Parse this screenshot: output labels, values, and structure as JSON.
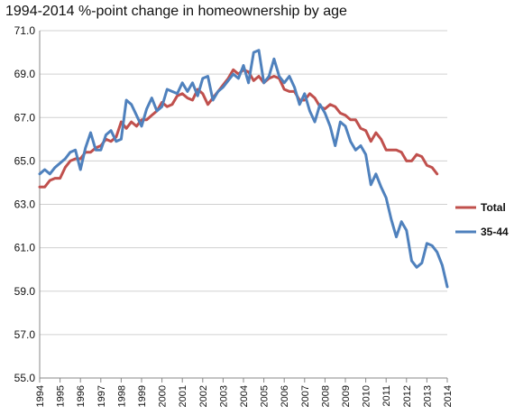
{
  "chart_data": {
    "type": "line",
    "title": "1994-2014 %-point change in homeownership by age",
    "xlabel": "",
    "ylabel": "",
    "ylim": [
      55.0,
      71.0
    ],
    "y_ticks": [
      "71.0",
      "69.0",
      "67.0",
      "65.0",
      "63.0",
      "61.0",
      "59.0",
      "57.0",
      "55.0"
    ],
    "x_ticks": [
      "1994",
      "1995",
      "1996",
      "1997",
      "1998",
      "1999",
      "2000",
      "2001",
      "2002",
      "2003",
      "2004",
      "2005",
      "2006",
      "2007",
      "2008",
      "2009",
      "2010",
      "2011",
      "2012",
      "2013",
      "2014"
    ],
    "x_start": 1994,
    "quarters_per_tick": 4,
    "grid": "horizontal",
    "legend_position": "right",
    "series": [
      {
        "name": "Total",
        "color": "#c0504d",
        "values": [
          63.8,
          63.8,
          64.1,
          64.2,
          64.2,
          64.7,
          65.0,
          65.1,
          65.1,
          65.4,
          65.4,
          65.6,
          65.7,
          66.0,
          65.9,
          66.1,
          66.8,
          66.5,
          66.8,
          66.6,
          66.9,
          66.9,
          67.1,
          67.3,
          67.7,
          67.5,
          67.6,
          68.0,
          68.1,
          67.9,
          67.8,
          68.3,
          68.1,
          67.6,
          67.9,
          68.2,
          68.5,
          68.8,
          69.2,
          69.0,
          69.2,
          69.1,
          68.7,
          68.9,
          68.6,
          68.8,
          68.9,
          68.8,
          68.3,
          68.2,
          68.2,
          67.8,
          67.8,
          68.1,
          67.9,
          67.5,
          67.4,
          67.6,
          67.5,
          67.2,
          67.1,
          66.9,
          66.9,
          66.5,
          66.4,
          65.9,
          66.3,
          66.0,
          65.5,
          65.5,
          65.5,
          65.4,
          65.0,
          65.0,
          65.3,
          65.2,
          64.8,
          64.7,
          64.4
        ]
      },
      {
        "name": "35-44",
        "color": "#4f81bd",
        "values": [
          64.4,
          64.6,
          64.4,
          64.7,
          64.9,
          65.1,
          65.4,
          65.5,
          64.6,
          65.6,
          66.3,
          65.5,
          65.5,
          66.2,
          66.4,
          65.9,
          66.0,
          67.8,
          67.6,
          67.1,
          66.6,
          67.4,
          67.9,
          67.3,
          67.5,
          68.3,
          68.2,
          68.1,
          68.6,
          68.2,
          68.6,
          68.0,
          68.8,
          68.9,
          67.8,
          68.2,
          68.4,
          68.7,
          69.0,
          68.8,
          69.4,
          68.6,
          70.0,
          70.1,
          68.6,
          68.9,
          69.7,
          68.9,
          68.6,
          68.9,
          68.4,
          67.6,
          68.1,
          67.3,
          66.8,
          67.6,
          67.2,
          66.6,
          65.7,
          66.8,
          66.6,
          65.9,
          65.5,
          65.7,
          65.3,
          63.9,
          64.4,
          63.8,
          63.3,
          62.3,
          61.5,
          62.2,
          61.8,
          60.4,
          60.1,
          60.3,
          61.2,
          61.1,
          60.8,
          60.2,
          59.2
        ]
      }
    ]
  }
}
